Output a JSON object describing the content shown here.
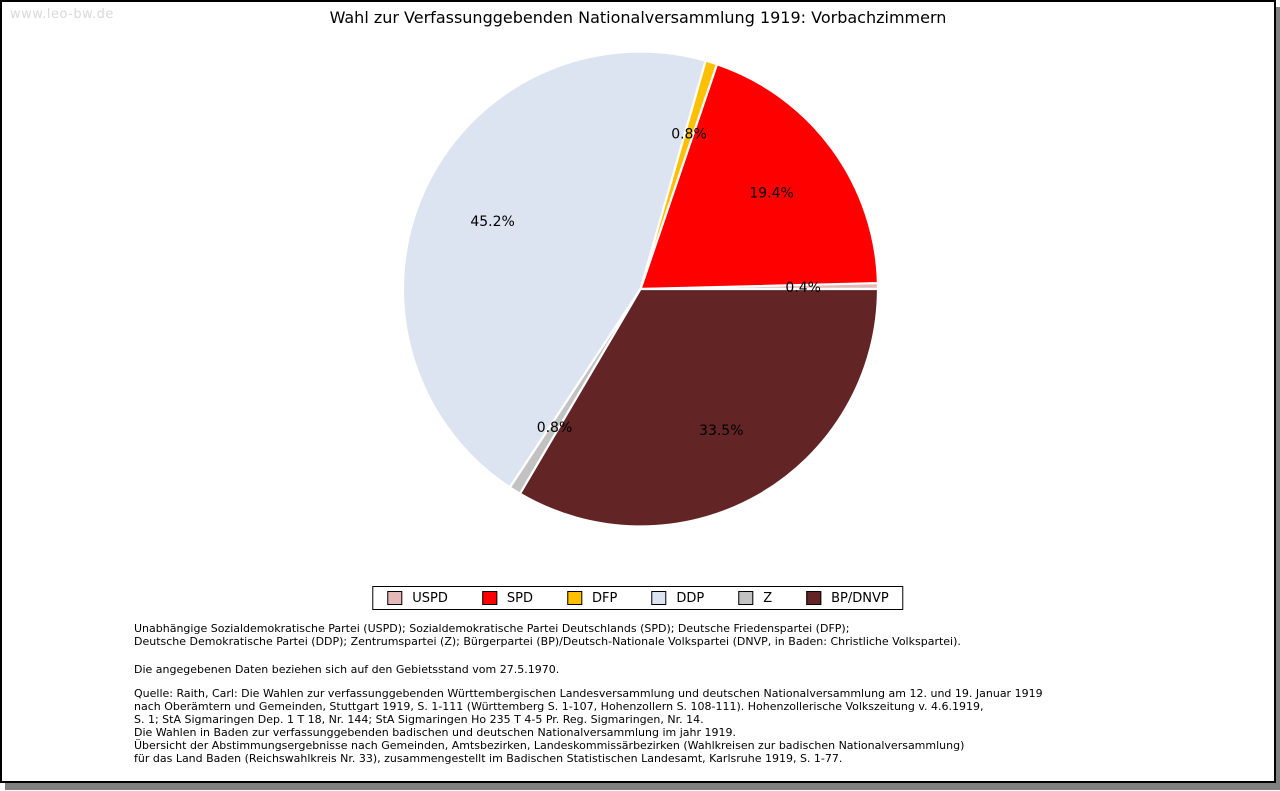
{
  "watermark": "www.leo-bw.de",
  "title": "Wahl zur Verfassunggebenden Nationalversammlung 1919: Vorbachzimmern",
  "chart_data": {
    "type": "pie",
    "title": "Wahl zur Verfassunggebenden Nationalversammlung 1919: Vorbachzimmern",
    "categories": [
      "USPD",
      "SPD",
      "DFP",
      "DDP",
      "Z",
      "BP/DNVP"
    ],
    "values": [
      0.4,
      19.4,
      0.8,
      45.2,
      0.8,
      33.5
    ],
    "labels": [
      "0.4%",
      "19.4%",
      "0.8%",
      "45.2%",
      "0.8%",
      "33.5%"
    ],
    "unit": "%",
    "colors": [
      "#e4b8b8",
      "#ff0000",
      "#fdc000",
      "#dbe4f0",
      "#c2c2c2",
      "#622424"
    ],
    "slice_border_color": "#ffffff",
    "start_angle_deg": 0,
    "direction": "counterclockwise",
    "legend_position": "bottom-center",
    "legend_entries": [
      "USPD",
      "SPD",
      "DFP",
      "DDP",
      "Z",
      "BP/DNVP"
    ]
  },
  "footnotes": {
    "abbreviations": [
      "Unabhängige Sozialdemokratische Partei (USPD); Sozialdemokratische Partei Deutschlands (SPD); Deutsche Friedenspartei (DFP);",
      "Deutsche Demokratische Partei (DDP); Zentrumspartei (Z); Bürgerpartei (BP)/Deutsch-Nationale Volkspartei (DNVP, in Baden: Christliche Volkspartei)."
    ],
    "data_note": "Die angegebenen Daten beziehen sich auf den Gebietsstand vom 27.5.1970.",
    "source_lines": [
      "Quelle: Raith, Carl: Die Wahlen zur verfassunggebenden Württembergischen Landesversammlung und deutschen Nationalversammlung am 12. und 19. Januar 1919",
      "nach Oberämtern und Gemeinden, Stuttgart 1919, S. 1-111 (Württemberg S. 1-107, Hohenzollern S. 108-111). Hohenzollerische Volkszeitung v. 4.6.1919,",
      "S. 1; StA Sigmaringen Dep. 1 T 18, Nr. 144; StA Sigmaringen Ho 235 T 4-5 Pr. Reg. Sigmaringen, Nr. 14.",
      "Die Wahlen in Baden zur verfassunggebenden badischen und deutschen Nationalversammlung im jahr 1919.",
      "Übersicht der Abstimmungsergebnisse nach Gemeinden, Amtsbezirken, Landeskommissärbezirken (Wahlkreisen zur badischen Nationalversammlung)",
      "für das Land Baden (Reichswahlkreis Nr. 33), zusammengestellt im Badischen Statistischen Landesamt, Karlsruhe 1919, S. 1-77."
    ]
  }
}
